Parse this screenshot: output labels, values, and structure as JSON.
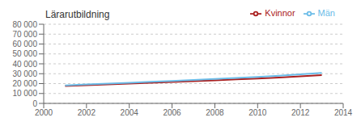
{
  "chart_data": {
    "type": "line",
    "title": "Lärarutbildning",
    "x": [
      2001,
      2002,
      2003,
      2004,
      2005,
      2006,
      2007,
      2008,
      2009,
      2010,
      2011,
      2012,
      2013
    ],
    "series": [
      {
        "name": "Kvinnor",
        "color": "#aa2020",
        "values": [
          17500,
          18300,
          19200,
          20000,
          20900,
          21700,
          22500,
          23300,
          24200,
          25200,
          26200,
          27300,
          28500
        ]
      },
      {
        "name": "Män",
        "color": "#6bbce8",
        "values": [
          18200,
          19100,
          20000,
          20900,
          21800,
          22700,
          23700,
          24700,
          25700,
          26800,
          28000,
          29400,
          30800
        ]
      }
    ],
    "xlim": [
      2000,
      2014
    ],
    "xticks": [
      2000,
      2002,
      2004,
      2006,
      2008,
      2010,
      2012,
      2014
    ],
    "ylim": [
      0,
      80000
    ],
    "yticks": [
      0,
      {
        "value": 10000,
        "label": "10 000"
      },
      {
        "value": 20000,
        "label": "20 000"
      },
      {
        "value": 30000,
        "label": "30 000"
      },
      {
        "value": 40000,
        "label": "40 000"
      },
      {
        "value": 50000,
        "label": "50 000"
      },
      {
        "value": 60000,
        "label": "60 000"
      },
      {
        "value": 70000,
        "label": "70 000"
      },
      {
        "value": 80000,
        "label": "80 000"
      }
    ],
    "grid": true,
    "legend": "upper right"
  }
}
